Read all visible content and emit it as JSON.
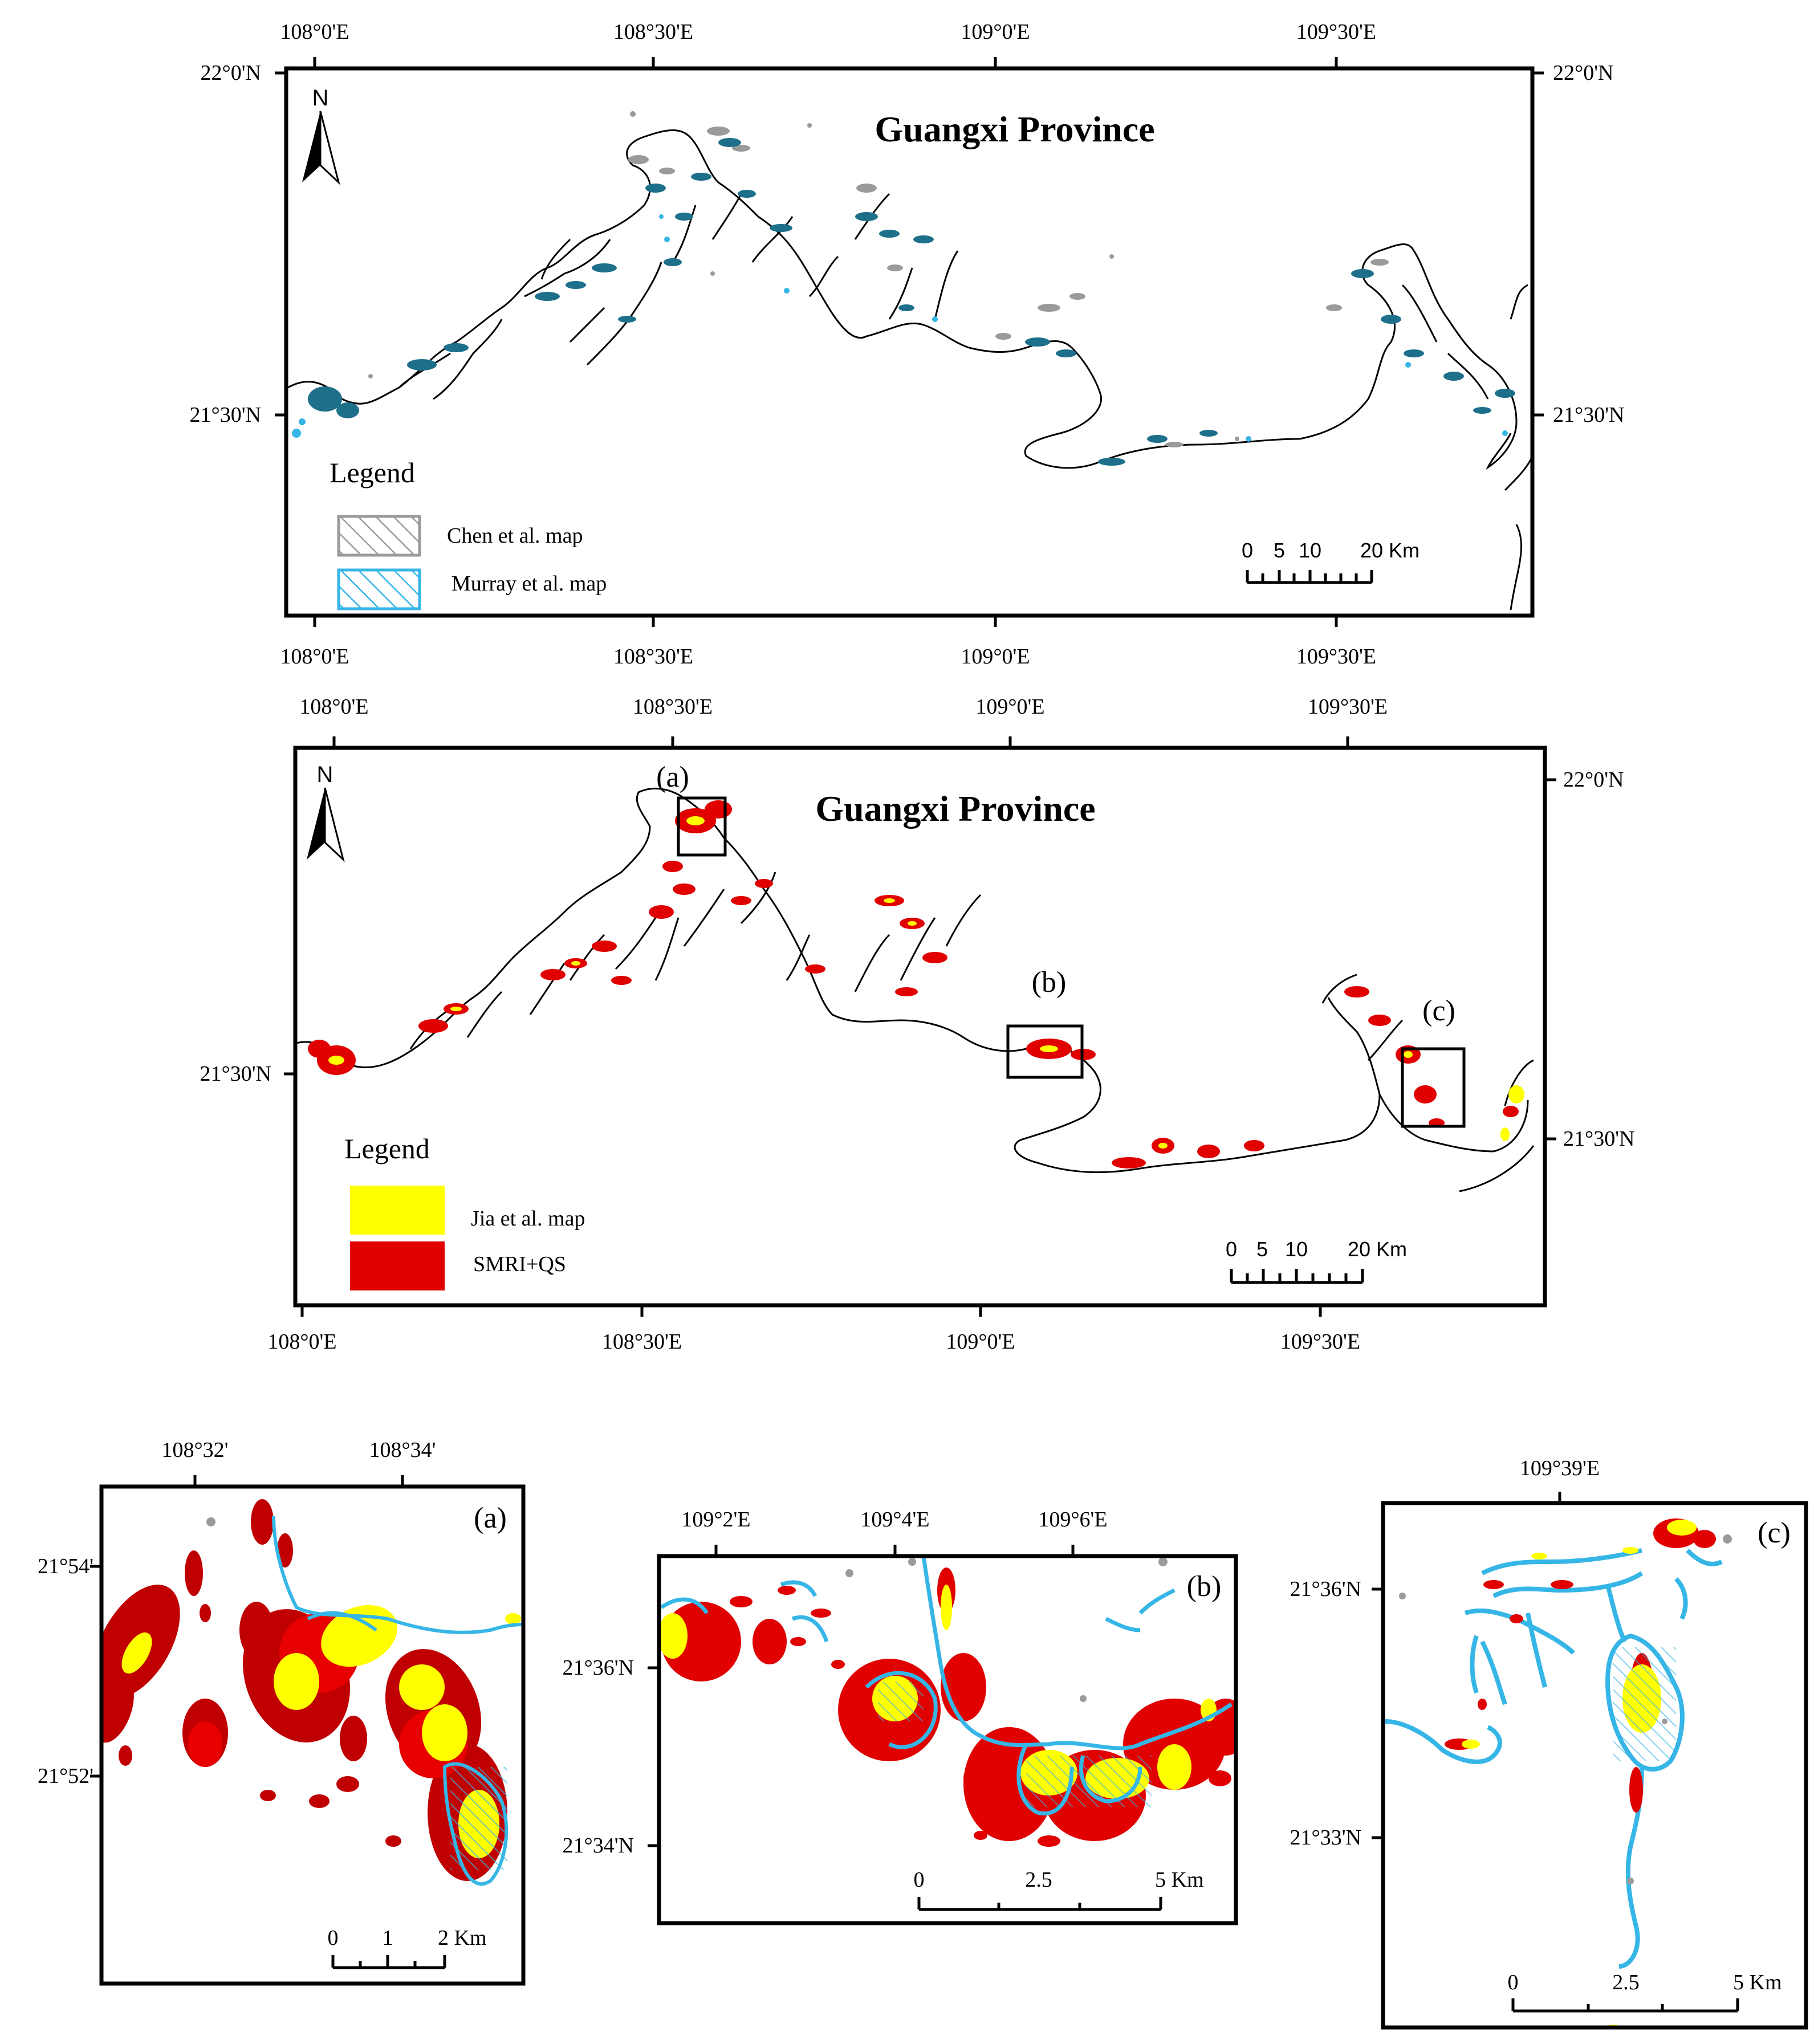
{
  "colors": {
    "chen": "#9a9a9a",
    "murray": "#35b6e6",
    "murray_dark": "#1d6f8a",
    "jia": "#ffff00",
    "smri": "#e00000",
    "coast": "#000000"
  },
  "map_top": {
    "title": "Guangxi Province",
    "north": "N",
    "top_ticks": [
      "108°0'E",
      "108°30'E",
      "109°0'E",
      "109°30'E"
    ],
    "bottom_ticks": [
      "108°0'E",
      "108°30'E",
      "109°0'E",
      "109°30'E"
    ],
    "left_ticks": [
      "22°0'N",
      "21°30'N"
    ],
    "right_ticks": [
      "22°0'N",
      "21°30'N"
    ],
    "legend": {
      "title": "Legend",
      "items": [
        {
          "label": "Chen et al. map",
          "icon": "hatched-gray-swatch"
        },
        {
          "label": "Murray et al. map",
          "icon": "hatched-blue-swatch"
        }
      ]
    },
    "scale": {
      "labels": [
        "0",
        "5",
        "10",
        "20 Km"
      ]
    }
  },
  "map_middle": {
    "title": "Guangxi Province",
    "north": "N",
    "top_ticks": [
      "108°0'E",
      "108°30'E",
      "109°0'E",
      "109°30'E"
    ],
    "bottom_ticks": [
      "108°0'E",
      "108°30'E",
      "109°0'E",
      "109°30'E"
    ],
    "left_ticks": [
      "21°30'N"
    ],
    "right_ticks": [
      "22°0'N",
      "21°30'N"
    ],
    "boxes": [
      "(a)",
      "(b)",
      "(c)"
    ],
    "legend": {
      "title": "Legend",
      "items": [
        {
          "label": "Jia et al. map",
          "icon": "yellow-swatch"
        },
        {
          "label": "SMRI+QS",
          "icon": "red-swatch"
        }
      ]
    },
    "scale": {
      "labels": [
        "0",
        "5",
        "10",
        "20 Km"
      ]
    }
  },
  "inset_a": {
    "label": "(a)",
    "top_ticks": [
      "108°32'",
      "108°34'"
    ],
    "left_ticks": [
      "21°54'",
      "21°52'"
    ],
    "scale": {
      "labels": [
        "0",
        "1",
        "2 Km"
      ]
    }
  },
  "inset_b": {
    "label": "(b)",
    "top_ticks": [
      "109°2'E",
      "109°4'E",
      "109°6'E"
    ],
    "left_ticks": [
      "21°36'N",
      "21°34'N"
    ],
    "scale": {
      "labels": [
        "0",
        "2.5",
        "5 Km"
      ]
    }
  },
  "inset_c": {
    "label": "(c)",
    "top_ticks": [
      "109°39'E"
    ],
    "left_ticks": [
      "21°36'N",
      "21°33'N"
    ],
    "scale": {
      "labels": [
        "0",
        "2.5",
        "5 Km"
      ]
    }
  }
}
